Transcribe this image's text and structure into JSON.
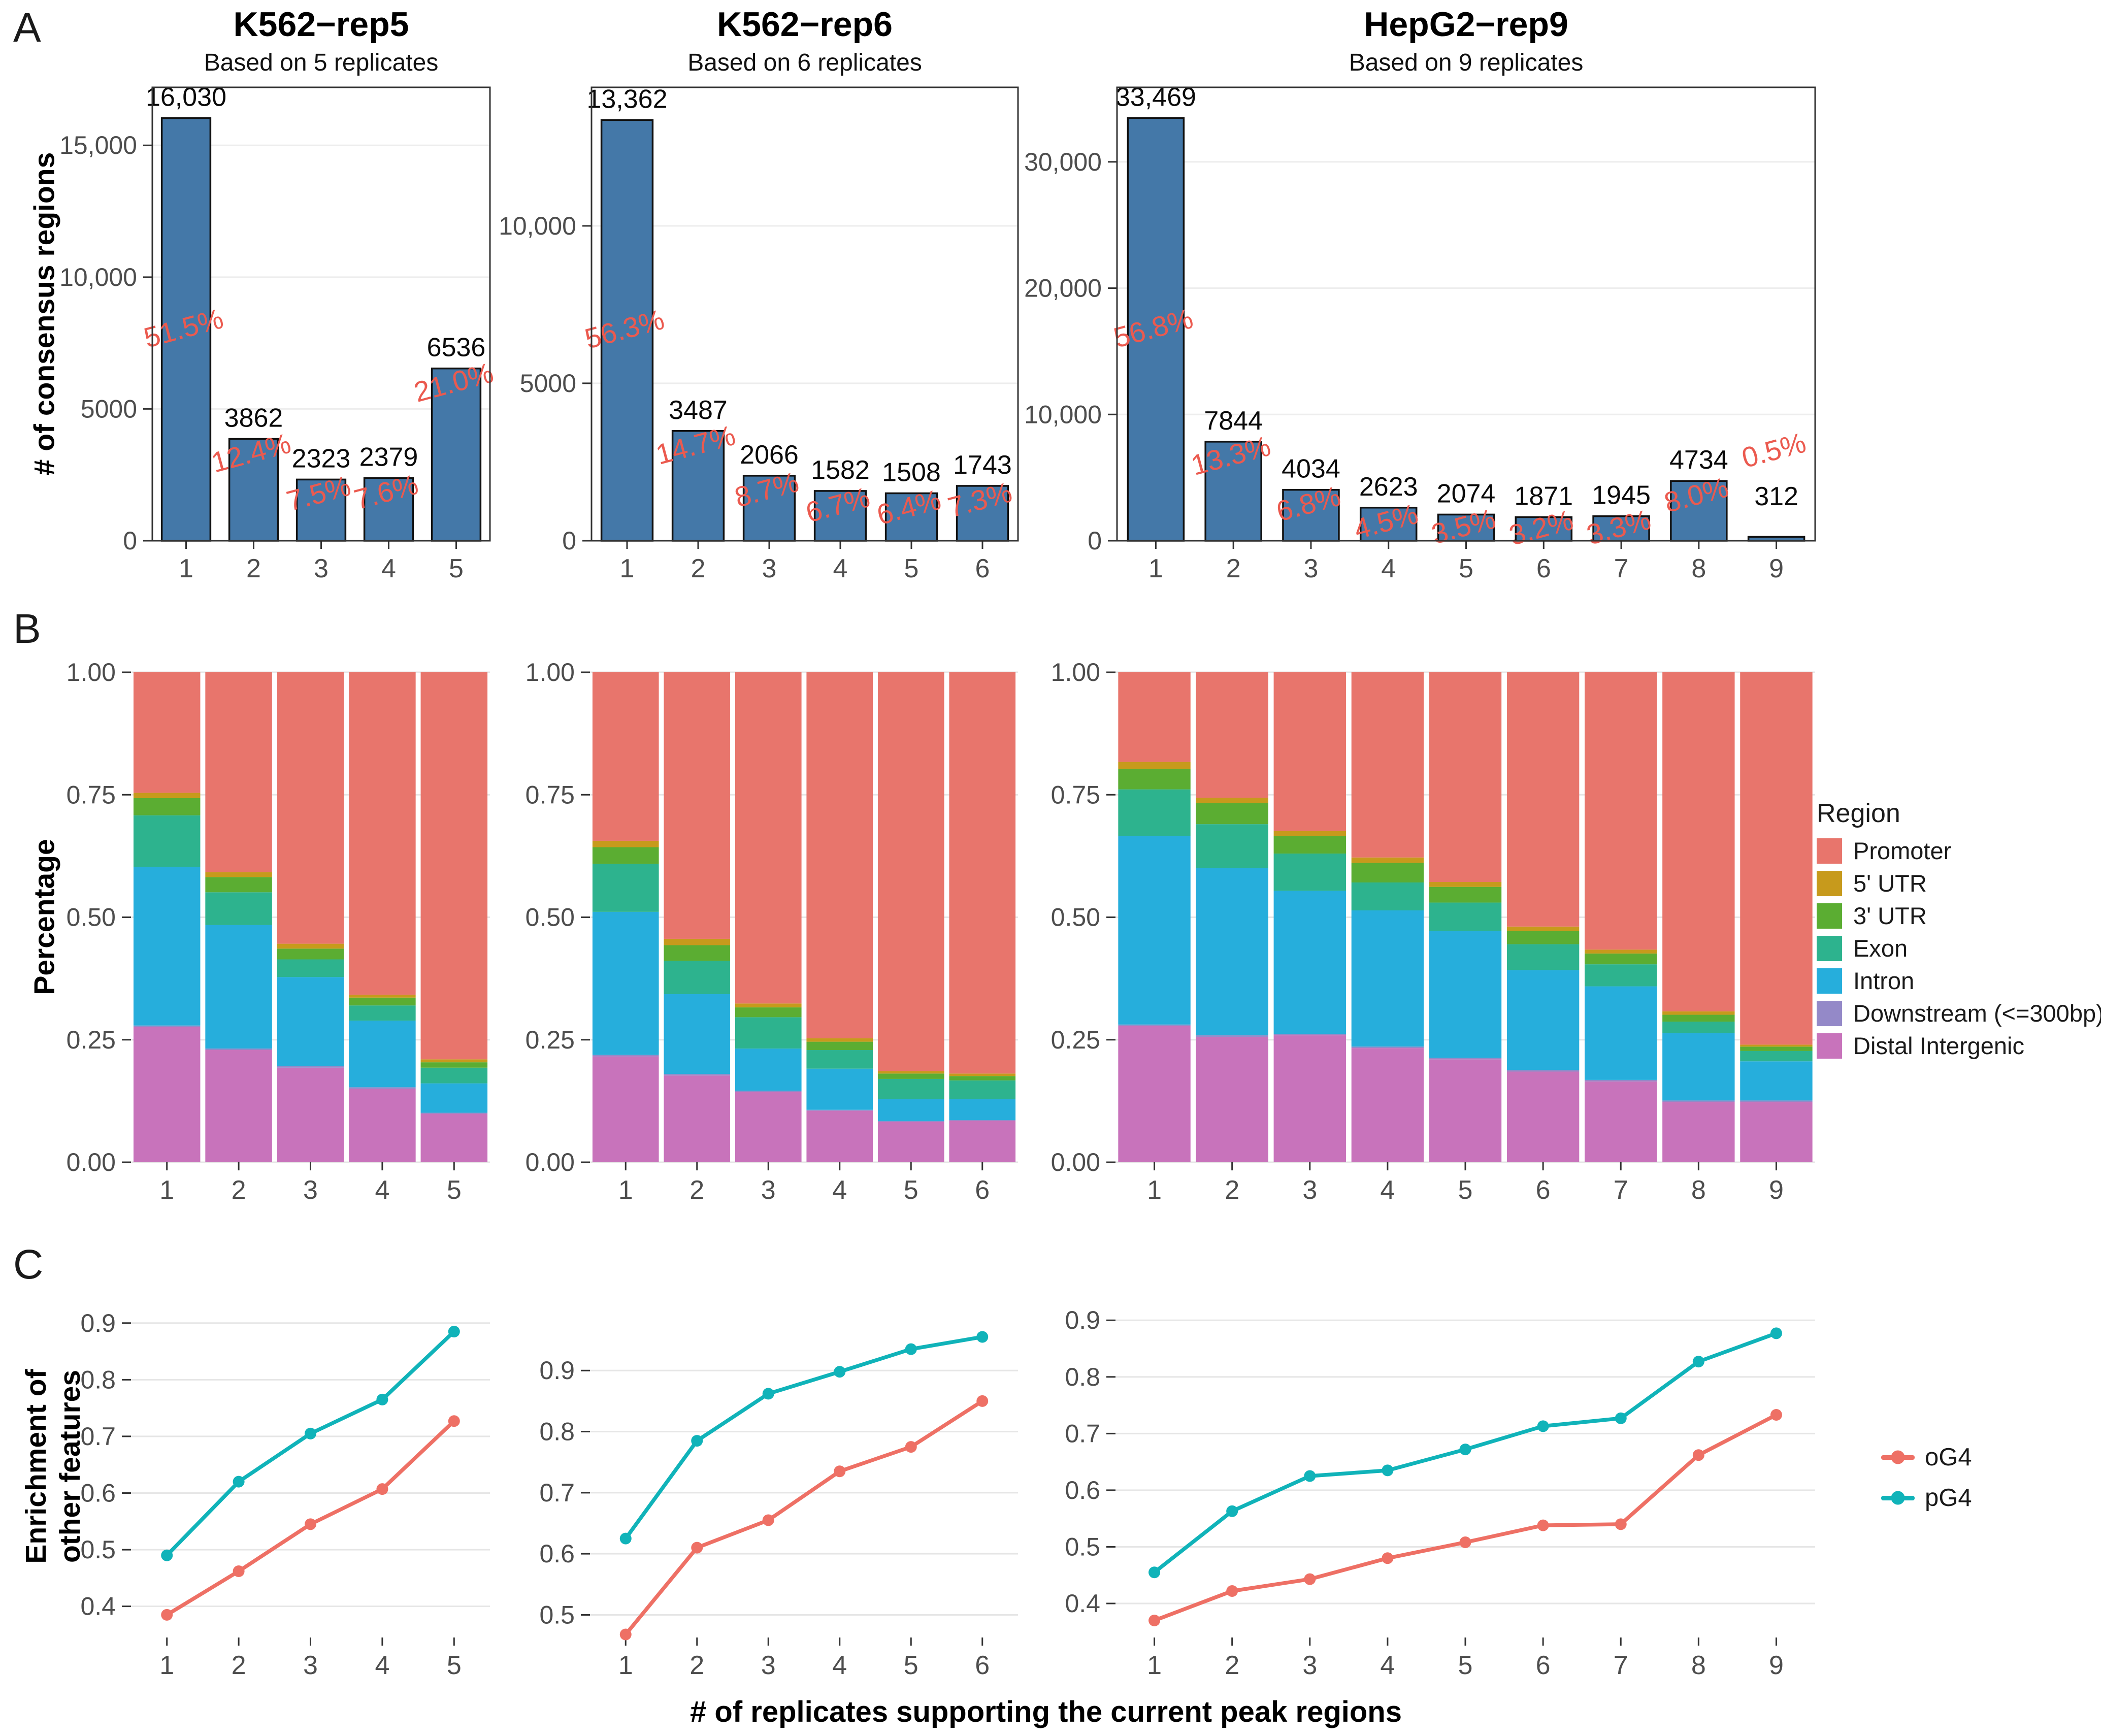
{
  "panel_labels": {
    "a": "A",
    "b": "B",
    "c": "C"
  },
  "columns": [
    {
      "title": "K562−rep5",
      "subtitle": "Based on 5 replicates"
    },
    {
      "title": "K562−rep6",
      "subtitle": "Based on 6 replicates"
    },
    {
      "title": "HepG2−rep9",
      "subtitle": "Based on 9 replicates"
    }
  ],
  "axis_titles": {
    "a_y": "# of consensus regions",
    "b_y": "Percentage",
    "c_y_line1": "Enrichment of",
    "c_y_line2": "other features",
    "x_shared": "# of replicates supporting the current peak regions"
  },
  "colors": {
    "bar_blue": "#4478A8",
    "bar_stroke": "#111111",
    "pct_red": "#EB5A4F",
    "axis_text": "#4D4D4D",
    "tick_mark": "#333333",
    "panel_border": "#333333",
    "promoter": "#E8756C",
    "utr5": "#C79A1C",
    "utr3": "#5BAD32",
    "exon": "#2DB38E",
    "intron": "#26AEDC",
    "downstream": "#9489C8",
    "distal": "#C873BB",
    "og4": "#EE7065",
    "pg4": "#10B3B9"
  },
  "region_legend": {
    "title": "Region",
    "items": [
      {
        "label": "Promoter",
        "color_key": "promoter"
      },
      {
        "label": "5' UTR",
        "color_key": "utr5"
      },
      {
        "label": "3' UTR",
        "color_key": "utr3"
      },
      {
        "label": "Exon",
        "color_key": "exon"
      },
      {
        "label": "Intron",
        "color_key": "intron"
      },
      {
        "label": "Downstream (<=300bp)",
        "color_key": "downstream"
      },
      {
        "label": "Distal Intergenic",
        "color_key": "distal"
      }
    ]
  },
  "g4_legend": {
    "items": [
      {
        "label": "oG4",
        "color_key": "og4"
      },
      {
        "label": "pG4",
        "color_key": "pg4"
      }
    ]
  },
  "chart_data": [
    {
      "id": "a1",
      "type": "bar",
      "row": "A",
      "col": 0,
      "title": "K562−rep5",
      "subtitle": "Based on 5 replicates",
      "ylabel": "# of consensus regions",
      "categories": [
        "1",
        "2",
        "3",
        "4",
        "5"
      ],
      "values": [
        16030,
        3862,
        2323,
        2379,
        6536
      ],
      "value_labels": [
        "16,030",
        "3862",
        "2323",
        "2379",
        "6536"
      ],
      "pct_labels": [
        "51.5%",
        "12.4%",
        "7.5%",
        "7.6%",
        "21.0%"
      ],
      "ylim": [
        0,
        17200
      ],
      "yticks": [
        {
          "v": 0,
          "label": "0"
        },
        {
          "v": 5000,
          "label": "5000"
        },
        {
          "v": 10000,
          "label": "10,000"
        },
        {
          "v": 15000,
          "label": "15,000"
        }
      ]
    },
    {
      "id": "a2",
      "type": "bar",
      "row": "A",
      "col": 1,
      "title": "K562−rep6",
      "subtitle": "Based on 6 replicates",
      "categories": [
        "1",
        "2",
        "3",
        "4",
        "5",
        "6"
      ],
      "values": [
        13362,
        3487,
        2066,
        1582,
        1508,
        1743
      ],
      "value_labels": [
        "13,362",
        "3487",
        "2066",
        "1582",
        "1508",
        "1743"
      ],
      "pct_labels": [
        "56.3%",
        "14.7%",
        "8.7%",
        "6.7%",
        "6.4%",
        "7.3%"
      ],
      "ylim": [
        0,
        14400
      ],
      "yticks": [
        {
          "v": 0,
          "label": "0"
        },
        {
          "v": 5000,
          "label": "5000"
        },
        {
          "v": 10000,
          "label": "10,000"
        }
      ]
    },
    {
      "id": "a3",
      "type": "bar",
      "row": "A",
      "col": 2,
      "title": "HepG2−rep9",
      "subtitle": "Based on 9 replicates",
      "categories": [
        "1",
        "2",
        "3",
        "4",
        "5",
        "6",
        "7",
        "8",
        "9"
      ],
      "values": [
        33469,
        7844,
        4034,
        2623,
        2074,
        1871,
        1945,
        4734,
        312
      ],
      "value_labels": [
        "33,469",
        "7844",
        "4034",
        "2623",
        "2074",
        "1871",
        "1945",
        "4734",
        "312"
      ],
      "pct_labels": [
        "56.8%",
        "13.3%",
        "6.8%",
        "4.5%",
        "3.5%",
        "3.2%",
        "3.3%",
        "8.0%",
        "0.5%"
      ],
      "ylim": [
        0,
        35900
      ],
      "yticks": [
        {
          "v": 0,
          "label": "0"
        },
        {
          "v": 10000,
          "label": "10,000"
        },
        {
          "v": 20000,
          "label": "20,000"
        },
        {
          "v": 30000,
          "label": "30,000"
        }
      ]
    },
    {
      "id": "b1",
      "type": "stacked-bar",
      "row": "B",
      "col": 0,
      "ylabel": "Percentage",
      "categories": [
        "1",
        "2",
        "3",
        "4",
        "5"
      ],
      "series": [
        {
          "name": "Distal Intergenic",
          "color_key": "distal",
          "values": [
            0.276,
            0.229,
            0.193,
            0.15,
            0.099
          ]
        },
        {
          "name": "Downstream (<=300bp)",
          "color_key": "downstream",
          "values": [
            0.003,
            0.003,
            0.003,
            0.003,
            0.002
          ]
        },
        {
          "name": "Intron",
          "color_key": "intron",
          "values": [
            0.324,
            0.252,
            0.182,
            0.136,
            0.06
          ]
        },
        {
          "name": "Exon",
          "color_key": "exon",
          "values": [
            0.105,
            0.067,
            0.036,
            0.031,
            0.032
          ]
        },
        {
          "name": "3' UTR",
          "color_key": "utr3",
          "values": [
            0.035,
            0.031,
            0.022,
            0.016,
            0.011
          ]
        },
        {
          "name": "5' UTR",
          "color_key": "utr5",
          "values": [
            0.011,
            0.01,
            0.01,
            0.006,
            0.006
          ]
        },
        {
          "name": "Promoter",
          "color_key": "promoter",
          "values": [
            0.246,
            0.408,
            0.554,
            0.658,
            0.79
          ]
        }
      ],
      "ylim": [
        0,
        1
      ],
      "yticks": [
        {
          "v": 0,
          "label": "0.00"
        },
        {
          "v": 0.25,
          "label": "0.25"
        },
        {
          "v": 0.5,
          "label": "0.50"
        },
        {
          "v": 0.75,
          "label": "0.75"
        },
        {
          "v": 1,
          "label": "1.00"
        }
      ]
    },
    {
      "id": "b2",
      "type": "stacked-bar",
      "row": "B",
      "col": 1,
      "categories": [
        "1",
        "2",
        "3",
        "4",
        "5",
        "6"
      ],
      "series": [
        {
          "name": "Distal Intergenic",
          "color_key": "distal",
          "values": [
            0.216,
            0.177,
            0.143,
            0.105,
            0.082,
            0.084
          ]
        },
        {
          "name": "Downstream (<=300bp)",
          "color_key": "downstream",
          "values": [
            0.003,
            0.003,
            0.003,
            0.002,
            0.002,
            0.002
          ]
        },
        {
          "name": "Intron",
          "color_key": "intron",
          "values": [
            0.292,
            0.163,
            0.086,
            0.084,
            0.045,
            0.043
          ]
        },
        {
          "name": "Exon",
          "color_key": "exon",
          "values": [
            0.098,
            0.068,
            0.064,
            0.038,
            0.041,
            0.038
          ]
        },
        {
          "name": "3' UTR",
          "color_key": "utr3",
          "values": [
            0.034,
            0.032,
            0.02,
            0.017,
            0.011,
            0.009
          ]
        },
        {
          "name": "5' UTR",
          "color_key": "utr5",
          "values": [
            0.013,
            0.013,
            0.008,
            0.007,
            0.005,
            0.005
          ]
        },
        {
          "name": "Promoter",
          "color_key": "promoter",
          "values": [
            0.344,
            0.544,
            0.676,
            0.747,
            0.814,
            0.819
          ]
        }
      ],
      "ylim": [
        0,
        1
      ],
      "yticks": [
        {
          "v": 0,
          "label": "0.00"
        },
        {
          "v": 0.25,
          "label": "0.25"
        },
        {
          "v": 0.5,
          "label": "0.50"
        },
        {
          "v": 0.75,
          "label": "0.75"
        },
        {
          "v": 1,
          "label": "1.00"
        }
      ]
    },
    {
      "id": "b3",
      "type": "stacked-bar",
      "row": "B",
      "col": 2,
      "categories": [
        "1",
        "2",
        "3",
        "4",
        "5",
        "6",
        "7",
        "8",
        "9"
      ],
      "series": [
        {
          "name": "Distal Intergenic",
          "color_key": "distal",
          "values": [
            0.278,
            0.256,
            0.259,
            0.233,
            0.21,
            0.185,
            0.165,
            0.123,
            0.123
          ]
        },
        {
          "name": "Downstream (<=300bp)",
          "color_key": "downstream",
          "values": [
            0.003,
            0.003,
            0.003,
            0.003,
            0.003,
            0.003,
            0.003,
            0.003,
            0.003
          ]
        },
        {
          "name": "Intron",
          "color_key": "intron",
          "values": [
            0.385,
            0.341,
            0.292,
            0.278,
            0.259,
            0.204,
            0.191,
            0.138,
            0.08
          ]
        },
        {
          "name": "Exon",
          "color_key": "exon",
          "values": [
            0.095,
            0.09,
            0.076,
            0.057,
            0.058,
            0.053,
            0.045,
            0.023,
            0.021
          ]
        },
        {
          "name": "3' UTR",
          "color_key": "utr3",
          "values": [
            0.042,
            0.043,
            0.036,
            0.04,
            0.032,
            0.027,
            0.022,
            0.014,
            0.009
          ]
        },
        {
          "name": "5' UTR",
          "color_key": "utr5",
          "values": [
            0.014,
            0.011,
            0.01,
            0.011,
            0.01,
            0.009,
            0.008,
            0.007,
            0.004
          ]
        },
        {
          "name": "Promoter",
          "color_key": "promoter",
          "values": [
            0.183,
            0.256,
            0.324,
            0.378,
            0.428,
            0.519,
            0.566,
            0.692,
            0.76
          ]
        }
      ],
      "ylim": [
        0,
        1
      ],
      "yticks": [
        {
          "v": 0,
          "label": "0.00"
        },
        {
          "v": 0.25,
          "label": "0.25"
        },
        {
          "v": 0.5,
          "label": "0.50"
        },
        {
          "v": 0.75,
          "label": "0.75"
        },
        {
          "v": 1,
          "label": "1.00"
        }
      ]
    },
    {
      "id": "c1",
      "type": "line",
      "row": "C",
      "col": 0,
      "ylabel": "Enrichment of other features",
      "categories": [
        "1",
        "2",
        "3",
        "4",
        "5"
      ],
      "series": [
        {
          "name": "oG4",
          "color_key": "og4",
          "values": [
            0.385,
            0.462,
            0.545,
            0.607,
            0.727
          ]
        },
        {
          "name": "pG4",
          "color_key": "pg4",
          "values": [
            0.49,
            0.62,
            0.705,
            0.765,
            0.885
          ]
        }
      ],
      "ylim": [
        0.345,
        0.95
      ],
      "yticks": [
        {
          "v": 0.4,
          "label": "0.4"
        },
        {
          "v": 0.5,
          "label": "0.5"
        },
        {
          "v": 0.6,
          "label": "0.6"
        },
        {
          "v": 0.7,
          "label": "0.7"
        },
        {
          "v": 0.8,
          "label": "0.8"
        },
        {
          "v": 0.9,
          "label": "0.9"
        }
      ]
    },
    {
      "id": "c2",
      "type": "line",
      "row": "C",
      "col": 1,
      "categories": [
        "1",
        "2",
        "3",
        "4",
        "5",
        "6"
      ],
      "series": [
        {
          "name": "oG4",
          "color_key": "og4",
          "values": [
            0.468,
            0.61,
            0.655,
            0.735,
            0.775,
            0.85
          ]
        },
        {
          "name": "pG4",
          "color_key": "pg4",
          "values": [
            0.625,
            0.785,
            0.862,
            0.898,
            0.935,
            0.955
          ]
        }
      ],
      "ylim": [
        0.463,
        1.024
      ],
      "yticks": [
        {
          "v": 0.5,
          "label": "0.5"
        },
        {
          "v": 0.6,
          "label": "0.6"
        },
        {
          "v": 0.7,
          "label": "0.7"
        },
        {
          "v": 0.8,
          "label": "0.8"
        },
        {
          "v": 0.9,
          "label": "0.9"
        }
      ]
    },
    {
      "id": "c3",
      "type": "line",
      "row": "C",
      "col": 2,
      "categories": [
        "1",
        "2",
        "3",
        "4",
        "5",
        "6",
        "7",
        "8",
        "9"
      ],
      "series": [
        {
          "name": "oG4",
          "color_key": "og4",
          "values": [
            0.37,
            0.422,
            0.443,
            0.48,
            0.508,
            0.538,
            0.54,
            0.662,
            0.733
          ]
        },
        {
          "name": "pG4",
          "color_key": "pg4",
          "values": [
            0.455,
            0.563,
            0.625,
            0.635,
            0.672,
            0.713,
            0.727,
            0.827,
            0.877
          ]
        }
      ],
      "ylim": [
        0.34,
        0.945
      ],
      "yticks": [
        {
          "v": 0.4,
          "label": "0.4"
        },
        {
          "v": 0.5,
          "label": "0.5"
        },
        {
          "v": 0.6,
          "label": "0.6"
        },
        {
          "v": 0.7,
          "label": "0.7"
        },
        {
          "v": 0.8,
          "label": "0.8"
        },
        {
          "v": 0.9,
          "label": "0.9"
        }
      ]
    }
  ]
}
